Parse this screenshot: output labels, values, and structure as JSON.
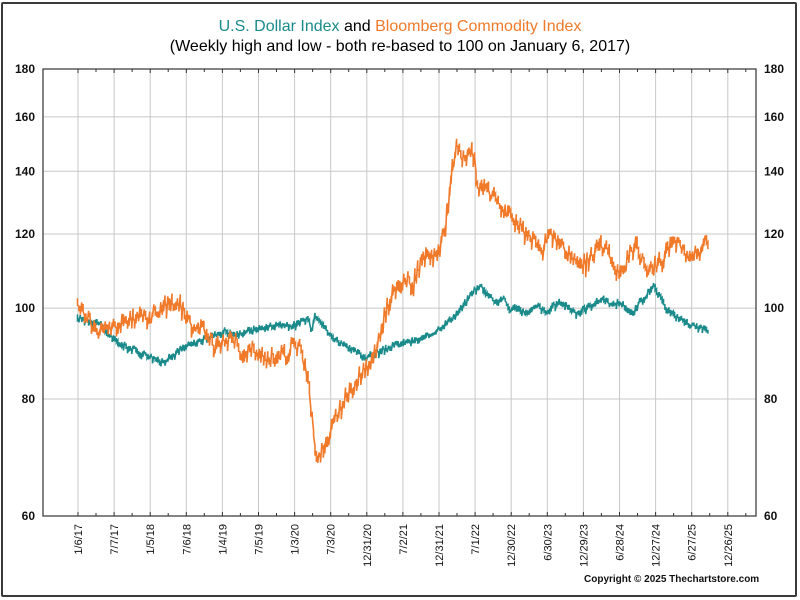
{
  "chart_data": {
    "type": "line",
    "title_parts": [
      {
        "text": "U.S. Dollar Index",
        "color": "#1a8a8a"
      },
      {
        "text": " and ",
        "color": "#000000"
      },
      {
        "text": "Bloomberg Commodity Index",
        "color": "#f07a2a"
      }
    ],
    "subtitle": "(Weekly high and low - both re-based to 100 on January 6, 2017)",
    "xlabel": "",
    "ylabel": "",
    "y_scale": "log",
    "ylim": [
      60,
      180
    ],
    "y_ticks": [
      60,
      80,
      100,
      120,
      140,
      160,
      180
    ],
    "y_axis_both_sides": true,
    "grid": true,
    "x_ticks": [
      "1/6/17",
      "7/7/17",
      "1/5/18",
      "7/6/18",
      "1/4/19",
      "7/5/19",
      "1/3/20",
      "7/3/20",
      "12/31/20",
      "7/2/21",
      "12/31/21",
      "7/1/22",
      "12/30/22",
      "6/30/23",
      "12/29/23",
      "6/28/24",
      "12/27/24",
      "6/27/25",
      "12/26/25"
    ],
    "x_range_years": [
      2016.7,
      2026.3
    ],
    "legend": "none (series named in title colors)",
    "series": [
      {
        "name": "U.S. Dollar Index",
        "color": "#1a8a8a",
        "x": [
          2017.01,
          2017.15,
          2017.3,
          2017.45,
          2017.6,
          2017.75,
          2017.9,
          2018.05,
          2018.15,
          2018.3,
          2018.45,
          2018.6,
          2018.75,
          2018.9,
          2019.05,
          2019.2,
          2019.35,
          2019.5,
          2019.65,
          2019.8,
          2019.95,
          2020.1,
          2020.2,
          2020.25,
          2020.3,
          2020.4,
          2020.5,
          2020.6,
          2020.75,
          2020.9,
          2021.0,
          2021.15,
          2021.3,
          2021.45,
          2021.6,
          2021.75,
          2021.9,
          2022.05,
          2022.2,
          2022.35,
          2022.5,
          2022.6,
          2022.7,
          2022.8,
          2022.9,
          2023.0,
          2023.1,
          2023.2,
          2023.3,
          2023.4,
          2023.5,
          2023.6,
          2023.7,
          2023.8,
          2023.9,
          2024.0,
          2024.1,
          2024.2,
          2024.3,
          2024.4,
          2024.5,
          2024.6,
          2024.7,
          2024.8,
          2024.9,
          2025.0,
          2025.05,
          2025.15,
          2025.25,
          2025.35,
          2025.45,
          2025.55,
          2025.65,
          2025.75
        ],
        "values": [
          98,
          97.5,
          97,
          94,
          92,
          91,
          90,
          89,
          88,
          89,
          91,
          92,
          93,
          94,
          95,
          94,
          95,
          95.5,
          96,
          96.5,
          96,
          97,
          98,
          95,
          99,
          97,
          94,
          93,
          91,
          90,
          89,
          90,
          91,
          92,
          92.5,
          93,
          94,
          96,
          98,
          101,
          105,
          106,
          104,
          102,
          103,
          100,
          101,
          99,
          100,
          101,
          99,
          101,
          102,
          101,
          99,
          100,
          101,
          102,
          103,
          101,
          102,
          101,
          99,
          102,
          104,
          106,
          104,
          101,
          99,
          98,
          97,
          96,
          95.5,
          95
        ],
        "low_offset_pct": 1.0
      },
      {
        "name": "Bloomberg Commodity Index",
        "color": "#f07a2a",
        "x": [
          2017.01,
          2017.1,
          2017.2,
          2017.3,
          2017.45,
          2017.6,
          2017.75,
          2017.9,
          2018.05,
          2018.15,
          2018.3,
          2018.4,
          2018.5,
          2018.6,
          2018.7,
          2018.8,
          2018.9,
          2019.0,
          2019.1,
          2019.2,
          2019.3,
          2019.45,
          2019.6,
          2019.75,
          2019.9,
          2020.0,
          2020.1,
          2020.15,
          2020.2,
          2020.25,
          2020.3,
          2020.35,
          2020.45,
          2020.55,
          2020.65,
          2020.75,
          2020.85,
          2020.95,
          2021.05,
          2021.15,
          2021.25,
          2021.35,
          2021.45,
          2021.55,
          2021.65,
          2021.75,
          2021.85,
          2021.95,
          2022.05,
          2022.12,
          2022.18,
          2022.25,
          2022.35,
          2022.45,
          2022.5,
          2022.55,
          2022.65,
          2022.75,
          2022.85,
          2022.95,
          2023.05,
          2023.15,
          2023.25,
          2023.35,
          2023.45,
          2023.55,
          2023.65,
          2023.75,
          2023.85,
          2023.95,
          2024.05,
          2024.15,
          2024.25,
          2024.35,
          2024.45,
          2024.55,
          2024.65,
          2024.75,
          2024.85,
          2024.95,
          2025.05,
          2025.15,
          2025.25,
          2025.35,
          2025.45,
          2025.55,
          2025.65,
          2025.75
        ],
        "values": [
          101,
          100,
          97,
          95,
          96,
          97,
          98,
          99,
          99,
          101,
          102,
          103,
          99,
          97,
          96,
          95,
          92,
          92,
          94,
          93,
          90,
          91,
          89,
          90,
          90,
          93,
          91,
          88,
          85,
          78,
          72,
          70,
          72,
          76,
          79,
          82,
          84,
          86,
          88,
          92,
          98,
          104,
          108,
          108,
          107,
          112,
          115,
          114,
          118,
          126,
          139,
          150,
          145,
          150,
          147,
          135,
          137,
          133,
          131,
          128,
          125,
          123,
          121,
          118,
          117,
          121,
          119,
          117,
          114,
          112,
          113,
          115,
          118,
          117,
          111,
          110,
          115,
          118,
          112,
          111,
          113,
          115,
          120,
          118,
          114,
          116,
          117,
          118
        ],
        "low_offset_pct": 2.0
      }
    ]
  },
  "footer": {
    "copyright": "Copyright © 2025 Thechartstore.com"
  }
}
